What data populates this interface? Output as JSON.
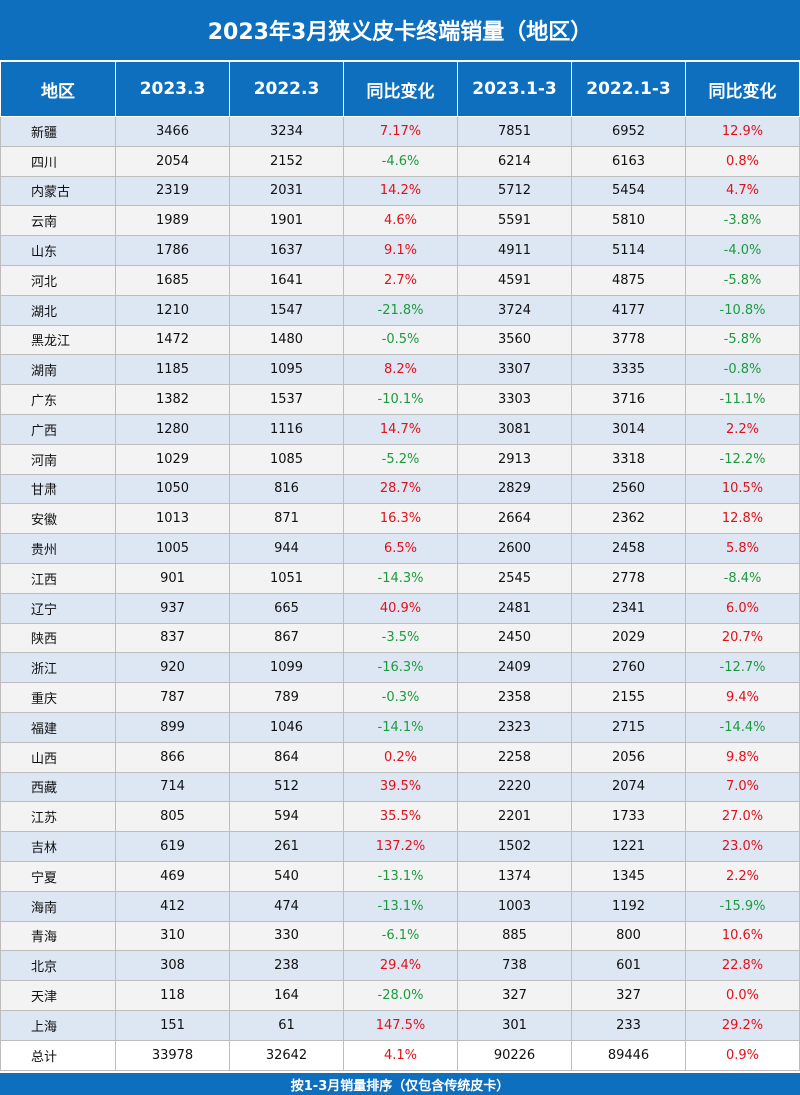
{
  "title": "2023年3月狭义皮卡终端销量（地区）",
  "headers": [
    "地区",
    "2023.3",
    "2022.3",
    "同比变化",
    "2023.1-3",
    "2022.1-3",
    "同比变化"
  ],
  "rows": [
    [
      "新疆",
      "3466",
      "3234",
      "7.17%",
      "7851",
      "6952",
      "12.9%"
    ],
    [
      "四川",
      "2054",
      "2152",
      "-4.6%",
      "6214",
      "6163",
      "0.8%"
    ],
    [
      "内蒙古",
      "2319",
      "2031",
      "14.2%",
      "5712",
      "5454",
      "4.7%"
    ],
    [
      "云南",
      "1989",
      "1901",
      "4.6%",
      "5591",
      "5810",
      "-3.8%"
    ],
    [
      "山东",
      "1786",
      "1637",
      "9.1%",
      "4911",
      "5114",
      "-4.0%"
    ],
    [
      "河北",
      "1685",
      "1641",
      "2.7%",
      "4591",
      "4875",
      "-5.8%"
    ],
    [
      "湖北",
      "1210",
      "1547",
      "-21.8%",
      "3724",
      "4177",
      "-10.8%"
    ],
    [
      "黑龙江",
      "1472",
      "1480",
      "-0.5%",
      "3560",
      "3778",
      "-5.8%"
    ],
    [
      "湖南",
      "1185",
      "1095",
      "8.2%",
      "3307",
      "3335",
      "-0.8%"
    ],
    [
      "广东",
      "1382",
      "1537",
      "-10.1%",
      "3303",
      "3716",
      "-11.1%"
    ],
    [
      "广西",
      "1280",
      "1116",
      "14.7%",
      "3081",
      "3014",
      "2.2%"
    ],
    [
      "河南",
      "1029",
      "1085",
      "-5.2%",
      "2913",
      "3318",
      "-12.2%"
    ],
    [
      "甘肃",
      "1050",
      "816",
      "28.7%",
      "2829",
      "2560",
      "10.5%"
    ],
    [
      "安徽",
      "1013",
      "871",
      "16.3%",
      "2664",
      "2362",
      "12.8%"
    ],
    [
      "贵州",
      "1005",
      "944",
      "6.5%",
      "2600",
      "2458",
      "5.8%"
    ],
    [
      "江西",
      "901",
      "1051",
      "-14.3%",
      "2545",
      "2778",
      "-8.4%"
    ],
    [
      "辽宁",
      "937",
      "665",
      "40.9%",
      "2481",
      "2341",
      "6.0%"
    ],
    [
      "陕西",
      "837",
      "867",
      "-3.5%",
      "2450",
      "2029",
      "20.7%"
    ],
    [
      "浙江",
      "920",
      "1099",
      "-16.3%",
      "2409",
      "2760",
      "-12.7%"
    ],
    [
      "重庆",
      "787",
      "789",
      "-0.3%",
      "2358",
      "2155",
      "9.4%"
    ],
    [
      "福建",
      "899",
      "1046",
      "-14.1%",
      "2323",
      "2715",
      "-14.4%"
    ],
    [
      "山西",
      "866",
      "864",
      "0.2%",
      "2258",
      "2056",
      "9.8%"
    ],
    [
      "西藏",
      "714",
      "512",
      "39.5%",
      "2220",
      "2074",
      "7.0%"
    ],
    [
      "江苏",
      "805",
      "594",
      "35.5%",
      "2201",
      "1733",
      "27.0%"
    ],
    [
      "吉林",
      "619",
      "261",
      "137.2%",
      "1502",
      "1221",
      "23.0%"
    ],
    [
      "宁夏",
      "469",
      "540",
      "-13.1%",
      "1374",
      "1345",
      "2.2%"
    ],
    [
      "海南",
      "412",
      "474",
      "-13.1%",
      "1003",
      "1192",
      "-15.9%"
    ],
    [
      "青海",
      "310",
      "330",
      "-6.1%",
      "885",
      "800",
      "10.6%"
    ],
    [
      "北京",
      "308",
      "238",
      "29.4%",
      "738",
      "601",
      "22.8%"
    ],
    [
      "天津",
      "118",
      "164",
      "-28.0%",
      "327",
      "327",
      "0.0%"
    ],
    [
      "上海",
      "151",
      "61",
      "147.5%",
      "301",
      "233",
      "29.2%"
    ],
    [
      "总计",
      "33978",
      "32642",
      "4.1%",
      "90226",
      "89446",
      "0.9%"
    ]
  ],
  "footer": "按1-3月销量排序（仅包含传统皮卡）",
  "colors": {
    "header_bg": "#0d6fbe",
    "positive_change": "#e0111b",
    "negative_change": "#1c9a3e",
    "row_odd": "#dde7f4",
    "row_even": "#f3f3f3"
  }
}
